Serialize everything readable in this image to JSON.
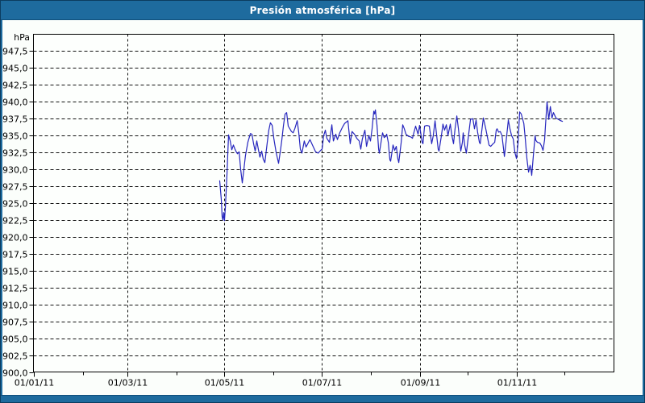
{
  "window": {
    "title": "Presión atmosférica [hPa]",
    "colors": {
      "chrome": "#1E6B9E",
      "chrome_border": "#0C3C5F",
      "background": "#FBFEFB",
      "grid": "#111111",
      "axis": "#000000",
      "line": "#2626BE",
      "title_text": "#FFFFFF",
      "label_text": "#000000"
    }
  },
  "chart_data": {
    "type": "line",
    "title": "Presión atmosférica [hPa]",
    "ylabel": "hPa",
    "xlabel": "",
    "ylim": [
      900,
      950
    ],
    "x_range_days": [
      0,
      365
    ],
    "x_start_date": "01/01/11",
    "grid": true,
    "legend": "none",
    "yticks": [
      {
        "v": 947.5,
        "label": "947,5"
      },
      {
        "v": 945.0,
        "label": "945,0"
      },
      {
        "v": 942.5,
        "label": "942,5"
      },
      {
        "v": 940.0,
        "label": "940,0"
      },
      {
        "v": 937.5,
        "label": "937,5"
      },
      {
        "v": 935.0,
        "label": "935,0"
      },
      {
        "v": 932.5,
        "label": "932,5"
      },
      {
        "v": 930.0,
        "label": "930,0"
      },
      {
        "v": 927.5,
        "label": "927,5"
      },
      {
        "v": 925.0,
        "label": "925,0"
      },
      {
        "v": 922.5,
        "label": "922,5"
      },
      {
        "v": 920.0,
        "label": "920,0"
      },
      {
        "v": 917.5,
        "label": "917,5"
      },
      {
        "v": 915.0,
        "label": "915,0"
      },
      {
        "v": 912.5,
        "label": "912,5"
      },
      {
        "v": 910.0,
        "label": "910,0"
      },
      {
        "v": 907.5,
        "label": "907,5"
      },
      {
        "v": 905.0,
        "label": "905,0"
      },
      {
        "v": 902.5,
        "label": "902,5"
      },
      {
        "v": 900.0,
        "label": "900,0"
      }
    ],
    "xticks": [
      {
        "d": 0,
        "label": "01/01/11"
      },
      {
        "d": 31,
        "label": ""
      },
      {
        "d": 59,
        "label": "01/03/11"
      },
      {
        "d": 90,
        "label": ""
      },
      {
        "d": 120,
        "label": "01/05/11"
      },
      {
        "d": 151,
        "label": ""
      },
      {
        "d": 181,
        "label": "01/07/11"
      },
      {
        "d": 212,
        "label": ""
      },
      {
        "d": 243,
        "label": "01/09/11"
      },
      {
        "d": 273,
        "label": ""
      },
      {
        "d": 304,
        "label": "01/11/11"
      },
      {
        "d": 334,
        "label": ""
      }
    ],
    "series": [
      {
        "name": "Presión atmosférica",
        "color": "#2626BE",
        "points": [
          [
            117.1,
            928.3
          ],
          [
            118.1,
            925.5
          ],
          [
            118.6,
            923.0
          ],
          [
            119.1,
            922.5
          ],
          [
            119.6,
            923.6
          ],
          [
            120.1,
            922.4
          ],
          [
            120.7,
            924.5
          ],
          [
            121.7,
            929.5
          ],
          [
            122.2,
            932.5
          ],
          [
            122.7,
            935.1
          ],
          [
            123.7,
            934.2
          ],
          [
            124.7,
            932.9
          ],
          [
            125.7,
            933.6
          ],
          [
            126.7,
            933.0
          ],
          [
            127.7,
            932.5
          ],
          [
            128.3,
            932.3
          ],
          [
            129.3,
            932.6
          ],
          [
            130.3,
            930.0
          ],
          [
            131.3,
            928.0
          ],
          [
            132.3,
            930.0
          ],
          [
            133.3,
            932.0
          ],
          [
            134.8,
            934.0
          ],
          [
            136.4,
            935.3
          ],
          [
            137.4,
            935.2
          ],
          [
            138.4,
            933.8
          ],
          [
            139.4,
            932.7
          ],
          [
            140.4,
            934.2
          ],
          [
            141.4,
            933.0
          ],
          [
            142.4,
            931.8
          ],
          [
            143.5,
            932.7
          ],
          [
            144.5,
            931.5
          ],
          [
            145.5,
            931.0
          ],
          [
            147.0,
            934.0
          ],
          [
            148.0,
            935.8
          ],
          [
            149.0,
            936.9
          ],
          [
            150.1,
            936.5
          ],
          [
            151.1,
            934.6
          ],
          [
            152.6,
            932.5
          ],
          [
            154.1,
            930.9
          ],
          [
            155.1,
            932.5
          ],
          [
            156.1,
            934.2
          ],
          [
            157.2,
            936.5
          ],
          [
            158.2,
            938.2
          ],
          [
            159.2,
            938.4
          ],
          [
            160.2,
            936.4
          ],
          [
            161.2,
            936.0
          ],
          [
            162.2,
            935.6
          ],
          [
            163.3,
            935.4
          ],
          [
            164.3,
            936.0
          ],
          [
            165.8,
            937.2
          ],
          [
            166.8,
            935.5
          ],
          [
            167.8,
            933.0
          ],
          [
            168.8,
            932.4
          ],
          [
            170.3,
            934.2
          ],
          [
            171.4,
            933.3
          ],
          [
            172.9,
            934.0
          ],
          [
            173.9,
            934.4
          ],
          [
            175.4,
            933.6
          ],
          [
            177.4,
            932.6
          ],
          [
            179.0,
            932.4
          ],
          [
            180.5,
            932.8
          ],
          [
            181.5,
            933.0
          ],
          [
            182.5,
            935.0
          ],
          [
            183.5,
            935.8
          ],
          [
            184.5,
            934.6
          ],
          [
            186.1,
            934.0
          ],
          [
            187.6,
            936.6
          ],
          [
            188.6,
            934.2
          ],
          [
            190.1,
            935.2
          ],
          [
            191.1,
            934.4
          ],
          [
            192.6,
            935.4
          ],
          [
            194.2,
            936.2
          ],
          [
            195.7,
            936.8
          ],
          [
            197.7,
            937.2
          ],
          [
            199.2,
            933.8
          ],
          [
            200.3,
            935.6
          ],
          [
            201.8,
            935.2
          ],
          [
            203.3,
            934.6
          ],
          [
            204.8,
            934.2
          ],
          [
            205.8,
            933.0
          ],
          [
            206.8,
            934.5
          ],
          [
            208.4,
            935.8
          ],
          [
            209.4,
            933.4
          ],
          [
            210.9,
            935.0
          ],
          [
            211.9,
            934.2
          ],
          [
            212.9,
            936.0
          ],
          [
            214.0,
            938.6
          ],
          [
            214.5,
            938.2
          ],
          [
            215.0,
            938.8
          ],
          [
            216.0,
            936.5
          ],
          [
            217.0,
            933.0
          ],
          [
            217.5,
            932.4
          ],
          [
            219.0,
            934.7
          ],
          [
            219.5,
            935.4
          ],
          [
            220.5,
            934.7
          ],
          [
            221.6,
            934.9
          ],
          [
            222.1,
            935.2
          ],
          [
            223.1,
            934.0
          ],
          [
            224.1,
            931.4
          ],
          [
            224.6,
            931.2
          ],
          [
            226.1,
            933.6
          ],
          [
            227.1,
            932.8
          ],
          [
            228.1,
            933.4
          ],
          [
            229.1,
            931.6
          ],
          [
            229.7,
            931.0
          ],
          [
            231.2,
            934.0
          ],
          [
            232.2,
            936.6
          ],
          [
            233.2,
            936.0
          ],
          [
            234.2,
            935.2
          ],
          [
            235.7,
            934.9
          ],
          [
            237.3,
            934.8
          ],
          [
            238.3,
            934.6
          ],
          [
            239.3,
            935.5
          ],
          [
            240.3,
            936.4
          ],
          [
            241.8,
            935.2
          ],
          [
            242.8,
            936.5
          ],
          [
            244.4,
            934.0
          ],
          [
            244.9,
            933.8
          ],
          [
            245.9,
            936.4
          ],
          [
            247.4,
            936.5
          ],
          [
            248.9,
            936.4
          ],
          [
            250.4,
            933.8
          ],
          [
            251.4,
            935.0
          ],
          [
            252.5,
            937.2
          ],
          [
            253.5,
            935.0
          ],
          [
            254.5,
            933.0
          ],
          [
            255.0,
            932.7
          ],
          [
            256.5,
            935.0
          ],
          [
            257.5,
            936.7
          ],
          [
            258.5,
            935.8
          ],
          [
            259.6,
            936.6
          ],
          [
            260.6,
            935.0
          ],
          [
            262.1,
            936.7
          ],
          [
            263.1,
            935.0
          ],
          [
            264.1,
            933.8
          ],
          [
            265.1,
            936.0
          ],
          [
            266.2,
            937.9
          ],
          [
            267.2,
            936.0
          ],
          [
            268.7,
            932.7
          ],
          [
            269.7,
            934.0
          ],
          [
            270.2,
            935.4
          ],
          [
            271.2,
            933.5
          ],
          [
            272.2,
            932.4
          ],
          [
            273.8,
            935.5
          ],
          [
            274.8,
            937.4
          ],
          [
            276.3,
            937.5
          ],
          [
            277.3,
            936.0
          ],
          [
            278.3,
            937.3
          ],
          [
            279.3,
            935.5
          ],
          [
            280.4,
            934.0
          ],
          [
            280.9,
            933.8
          ],
          [
            282.9,
            937.6
          ],
          [
            284.4,
            936.0
          ],
          [
            286.4,
            933.6
          ],
          [
            287.5,
            933.4
          ],
          [
            289.0,
            933.8
          ],
          [
            290.0,
            934.0
          ],
          [
            291.0,
            935.8
          ],
          [
            291.5,
            936.0
          ],
          [
            292.5,
            935.5
          ],
          [
            293.5,
            935.6
          ],
          [
            294.6,
            935.0
          ],
          [
            295.6,
            933.0
          ],
          [
            296.1,
            931.9
          ],
          [
            297.1,
            934.0
          ],
          [
            298.6,
            937.3
          ],
          [
            299.6,
            936.0
          ],
          [
            300.6,
            935.0
          ],
          [
            301.7,
            934.5
          ],
          [
            302.7,
            932.5
          ],
          [
            303.7,
            931.6
          ],
          [
            304.7,
            934.0
          ],
          [
            305.7,
            938.5
          ],
          [
            306.7,
            938.2
          ],
          [
            308.3,
            936.8
          ],
          [
            309.3,
            934.4
          ],
          [
            310.3,
            931.5
          ],
          [
            311.3,
            929.6
          ],
          [
            312.3,
            930.6
          ],
          [
            312.8,
            930.0
          ],
          [
            313.3,
            929.1
          ],
          [
            314.3,
            932.0
          ],
          [
            315.4,
            935.0
          ],
          [
            315.9,
            934.3
          ],
          [
            316.9,
            934.0
          ],
          [
            318.4,
            933.9
          ],
          [
            319.4,
            933.5
          ],
          [
            320.4,
            932.8
          ],
          [
            321.4,
            934.4
          ],
          [
            321.9,
            936.4
          ],
          [
            322.9,
            940.0
          ],
          [
            324.0,
            937.4
          ],
          [
            325.0,
            939.3
          ],
          [
            326.0,
            937.6
          ],
          [
            327.0,
            938.4
          ],
          [
            328.5,
            937.6
          ],
          [
            330.0,
            937.4
          ],
          [
            331.6,
            937.2
          ],
          [
            332.6,
            937.1
          ]
        ]
      }
    ]
  }
}
